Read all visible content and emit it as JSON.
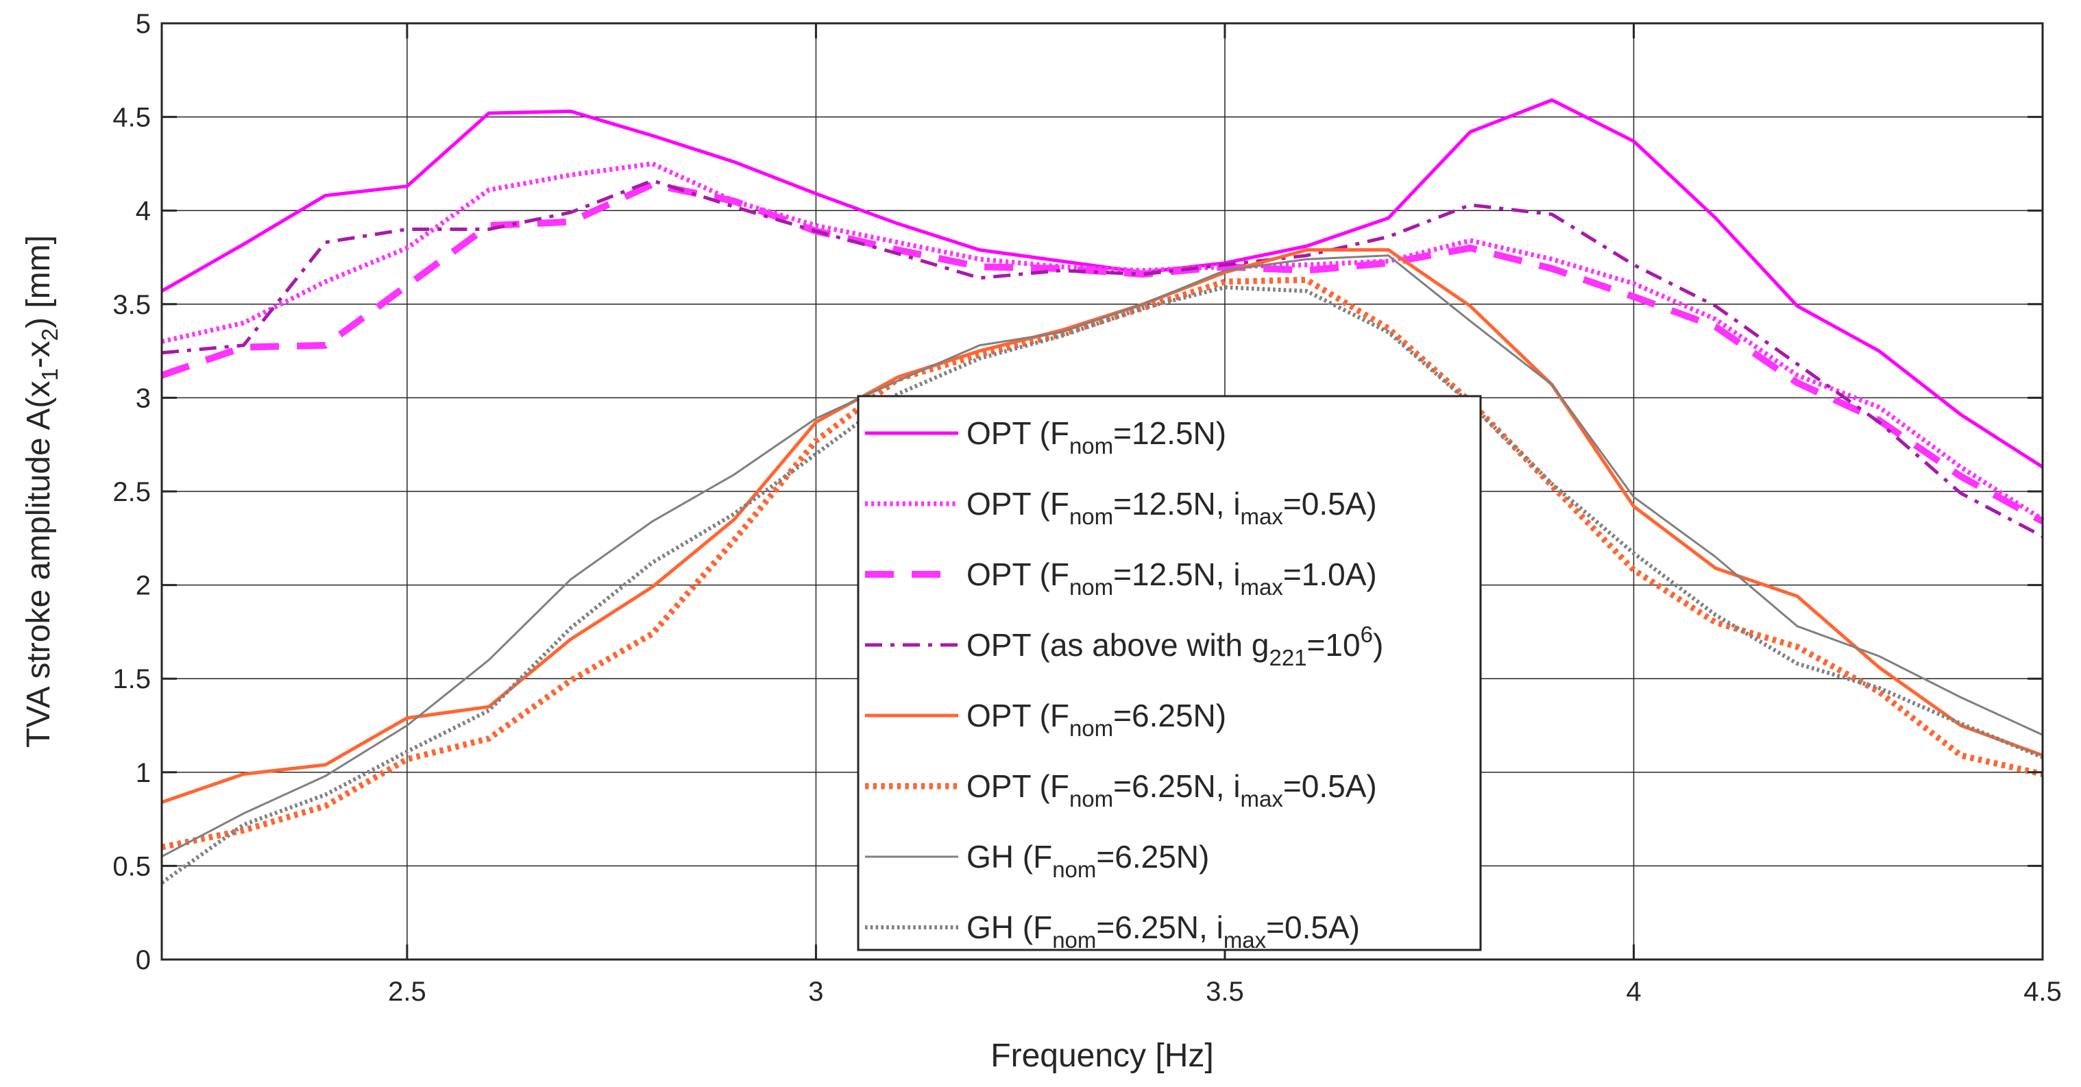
{
  "chart_data": {
    "type": "line",
    "title": "",
    "xlabel": "Frequency [Hz]",
    "ylabel": {
      "main": "TVA stroke amplitude A(x",
      "sub1": "1",
      "mid": "-x",
      "sub2": "2",
      "tail": ") [mm]"
    },
    "xlim": [
      2.2,
      4.5
    ],
    "ylim": [
      0,
      5
    ],
    "xticks": [
      2.5,
      3,
      3.5,
      4,
      4.5
    ],
    "xtick_labels": [
      "2.5",
      "3",
      "3.5",
      "4",
      "4.5"
    ],
    "yticks": [
      0,
      0.5,
      1,
      1.5,
      2,
      2.5,
      3,
      3.5,
      4,
      4.5,
      5
    ],
    "ytick_labels": [
      "0",
      "0.5",
      "1",
      "1.5",
      "2",
      "2.5",
      "3",
      "3.5",
      "4",
      "4.5",
      "5"
    ],
    "grid": true,
    "legend_position": "center",
    "x": [
      2.2,
      2.3,
      2.4,
      2.5,
      2.6,
      2.7,
      2.8,
      2.9,
      3.0,
      3.1,
      3.2,
      3.3,
      3.4,
      3.5,
      3.6,
      3.7,
      3.8,
      3.9,
      4.0,
      4.1,
      4.2,
      4.3,
      4.4,
      4.5
    ],
    "series": [
      {
        "name": "OPT (F_nom=12.5N)",
        "label": [
          {
            "t": "OPT (F"
          },
          {
            "t": "nom",
            "sub": true
          },
          {
            "t": "=12.5N)"
          }
        ],
        "color": "#ff00ff",
        "style": "solid",
        "width": 5,
        "values": [
          3.57,
          3.82,
          4.08,
          4.13,
          4.52,
          4.53,
          4.4,
          4.26,
          4.09,
          3.93,
          3.79,
          3.73,
          3.67,
          3.72,
          3.81,
          3.96,
          4.42,
          4.59,
          4.37,
          3.96,
          3.49,
          3.25,
          2.91,
          2.63
        ]
      },
      {
        "name": "OPT (F_nom=12.5N, i_max=0.5A)",
        "label": [
          {
            "t": "OPT (F"
          },
          {
            "t": "nom",
            "sub": true
          },
          {
            "t": "=12.5N, i"
          },
          {
            "t": "max",
            "sub": true
          },
          {
            "t": "=0.5A)"
          }
        ],
        "color": "#ff33ff",
        "style": "dotted",
        "width": 7,
        "values": [
          3.3,
          3.4,
          3.62,
          3.8,
          4.11,
          4.19,
          4.25,
          4.05,
          3.92,
          3.83,
          3.74,
          3.7,
          3.68,
          3.7,
          3.71,
          3.73,
          3.84,
          3.74,
          3.61,
          3.42,
          3.12,
          2.95,
          2.63,
          2.35
        ]
      },
      {
        "name": "OPT (F_nom=12.5N, i_max=1.0A)",
        "label": [
          {
            "t": "OPT (F"
          },
          {
            "t": "nom",
            "sub": true
          },
          {
            "t": "=12.5N, i"
          },
          {
            "t": "max",
            "sub": true
          },
          {
            "t": "=1.0A)"
          }
        ],
        "color": "#ff33ff",
        "style": "dashed",
        "width": 10,
        "values": [
          3.12,
          3.27,
          3.28,
          3.6,
          3.92,
          3.94,
          4.14,
          4.05,
          3.89,
          3.79,
          3.7,
          3.69,
          3.66,
          3.7,
          3.68,
          3.72,
          3.8,
          3.69,
          3.54,
          3.38,
          3.08,
          2.88,
          2.58,
          2.34
        ]
      },
      {
        "name": "OPT (as above with g_221=10^6)",
        "label": [
          {
            "t": "OPT (as above with g"
          },
          {
            "t": "221",
            "sub": true
          },
          {
            "t": "=10"
          },
          {
            "t": "6",
            "sup": true
          },
          {
            "t": ")"
          }
        ],
        "color": "#a81aa8",
        "style": "dashdot",
        "width": 5,
        "values": [
          3.24,
          3.28,
          3.83,
          3.9,
          3.9,
          3.99,
          4.16,
          4.02,
          3.89,
          3.77,
          3.64,
          3.68,
          3.66,
          3.71,
          3.76,
          3.86,
          4.03,
          3.98,
          3.71,
          3.49,
          3.18,
          2.87,
          2.49,
          2.26
        ]
      },
      {
        "name": "OPT (F_nom=6.25N)",
        "label": [
          {
            "t": "OPT (F"
          },
          {
            "t": "nom",
            "sub": true
          },
          {
            "t": "=6.25N)"
          }
        ],
        "color": "#ff6633",
        "style": "solid",
        "width": 5,
        "values": [
          0.84,
          0.99,
          1.04,
          1.29,
          1.35,
          1.71,
          1.99,
          2.35,
          2.87,
          3.11,
          3.25,
          3.36,
          3.5,
          3.67,
          3.79,
          3.79,
          3.49,
          3.07,
          2.42,
          2.09,
          1.94,
          1.56,
          1.25,
          1.09
        ]
      },
      {
        "name": "OPT (F_nom=6.25N, i_max=0.5A)",
        "label": [
          {
            "t": "OPT (F"
          },
          {
            "t": "nom",
            "sub": true
          },
          {
            "t": "=6.25N, i"
          },
          {
            "t": "max",
            "sub": true
          },
          {
            "t": "=0.5A)"
          }
        ],
        "color": "#ff6633",
        "style": "dotted",
        "width": 9,
        "values": [
          0.6,
          0.69,
          0.82,
          1.07,
          1.18,
          1.49,
          1.74,
          2.24,
          2.77,
          3.1,
          3.23,
          3.34,
          3.48,
          3.62,
          3.63,
          3.37,
          2.98,
          2.53,
          2.08,
          1.8,
          1.67,
          1.43,
          1.09,
          0.99
        ]
      },
      {
        "name": "GH (F_nom=6.25N)",
        "label": [
          {
            "t": "GH (F"
          },
          {
            "t": "nom",
            "sub": true
          },
          {
            "t": "=6.25N)"
          }
        ],
        "color": "#808080",
        "style": "solid",
        "width": 3,
        "values": [
          0.55,
          0.78,
          0.98,
          1.25,
          1.6,
          2.03,
          2.34,
          2.59,
          2.89,
          3.09,
          3.28,
          3.35,
          3.5,
          3.68,
          3.74,
          3.76,
          3.41,
          3.07,
          2.47,
          2.15,
          1.78,
          1.62,
          1.4,
          1.2
        ]
      },
      {
        "name": "GH (F_nom=6.25N, i_max=0.5A)",
        "label": [
          {
            "t": "GH (F"
          },
          {
            "t": "nom",
            "sub": true
          },
          {
            "t": "=6.25N, i"
          },
          {
            "t": "max",
            "sub": true
          },
          {
            "t": "=0.5A)"
          }
        ],
        "color": "#808080",
        "style": "dotted",
        "width": 6,
        "values": [
          0.41,
          0.72,
          0.88,
          1.11,
          1.33,
          1.77,
          2.12,
          2.38,
          2.7,
          3.02,
          3.21,
          3.33,
          3.48,
          3.59,
          3.57,
          3.35,
          2.97,
          2.54,
          2.17,
          1.84,
          1.58,
          1.45,
          1.26,
          1.08
        ]
      }
    ]
  }
}
